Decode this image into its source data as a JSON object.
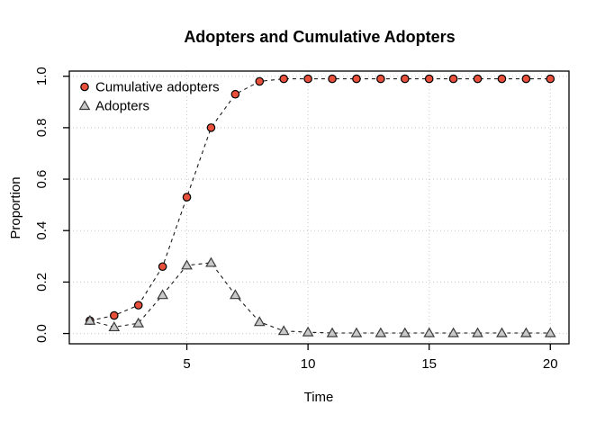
{
  "chart_data": {
    "type": "line",
    "title": "Adopters and Cumulative Adopters",
    "xlabel": "Time",
    "ylabel": "Proportion",
    "x": [
      1,
      2,
      3,
      4,
      5,
      6,
      7,
      8,
      9,
      10,
      11,
      12,
      13,
      14,
      15,
      16,
      17,
      18,
      19,
      20
    ],
    "series": [
      {
        "name": "Cumulative adopters",
        "marker": "circle",
        "marker_fill": "#e8503c",
        "marker_stroke": "#000000",
        "line_style": "dashed",
        "values": [
          0.05,
          0.07,
          0.11,
          0.26,
          0.53,
          0.8,
          0.93,
          0.98,
          0.99,
          0.99,
          0.99,
          0.99,
          0.99,
          0.99,
          0.99,
          0.99,
          0.99,
          0.99,
          0.99,
          0.99
        ]
      },
      {
        "name": "Adopters",
        "marker": "triangle",
        "marker_fill": "#c9c9c9",
        "marker_stroke": "#3a3a3a",
        "line_style": "dashed",
        "values": [
          0.05,
          0.025,
          0.04,
          0.15,
          0.265,
          0.275,
          0.15,
          0.045,
          0.01,
          0.005,
          0.002,
          0.002,
          0.002,
          0.002,
          0.002,
          0.002,
          0.002,
          0.002,
          0.002,
          0.002
        ]
      }
    ],
    "x_ticks": {
      "values": [
        5,
        10,
        15,
        20
      ],
      "labels": [
        "5",
        "10",
        "15",
        "20"
      ]
    },
    "y_ticks": {
      "values": [
        0,
        0.2,
        0.4,
        0.6,
        0.8,
        1
      ],
      "labels": [
        "0.0",
        "0.2",
        "0.4",
        "0.6",
        "0.8",
        "1.0"
      ]
    },
    "xlim": [
      0.15,
      20.77
    ],
    "ylim": [
      -0.04,
      1.02
    ],
    "grid": true,
    "grid_style": "dotted",
    "legend_position": "top-left",
    "colors": {
      "line": "#1a1a1a",
      "grid": "#c9c9c9",
      "box": "#000000",
      "background": "#ffffff",
      "text": "#000000"
    }
  }
}
